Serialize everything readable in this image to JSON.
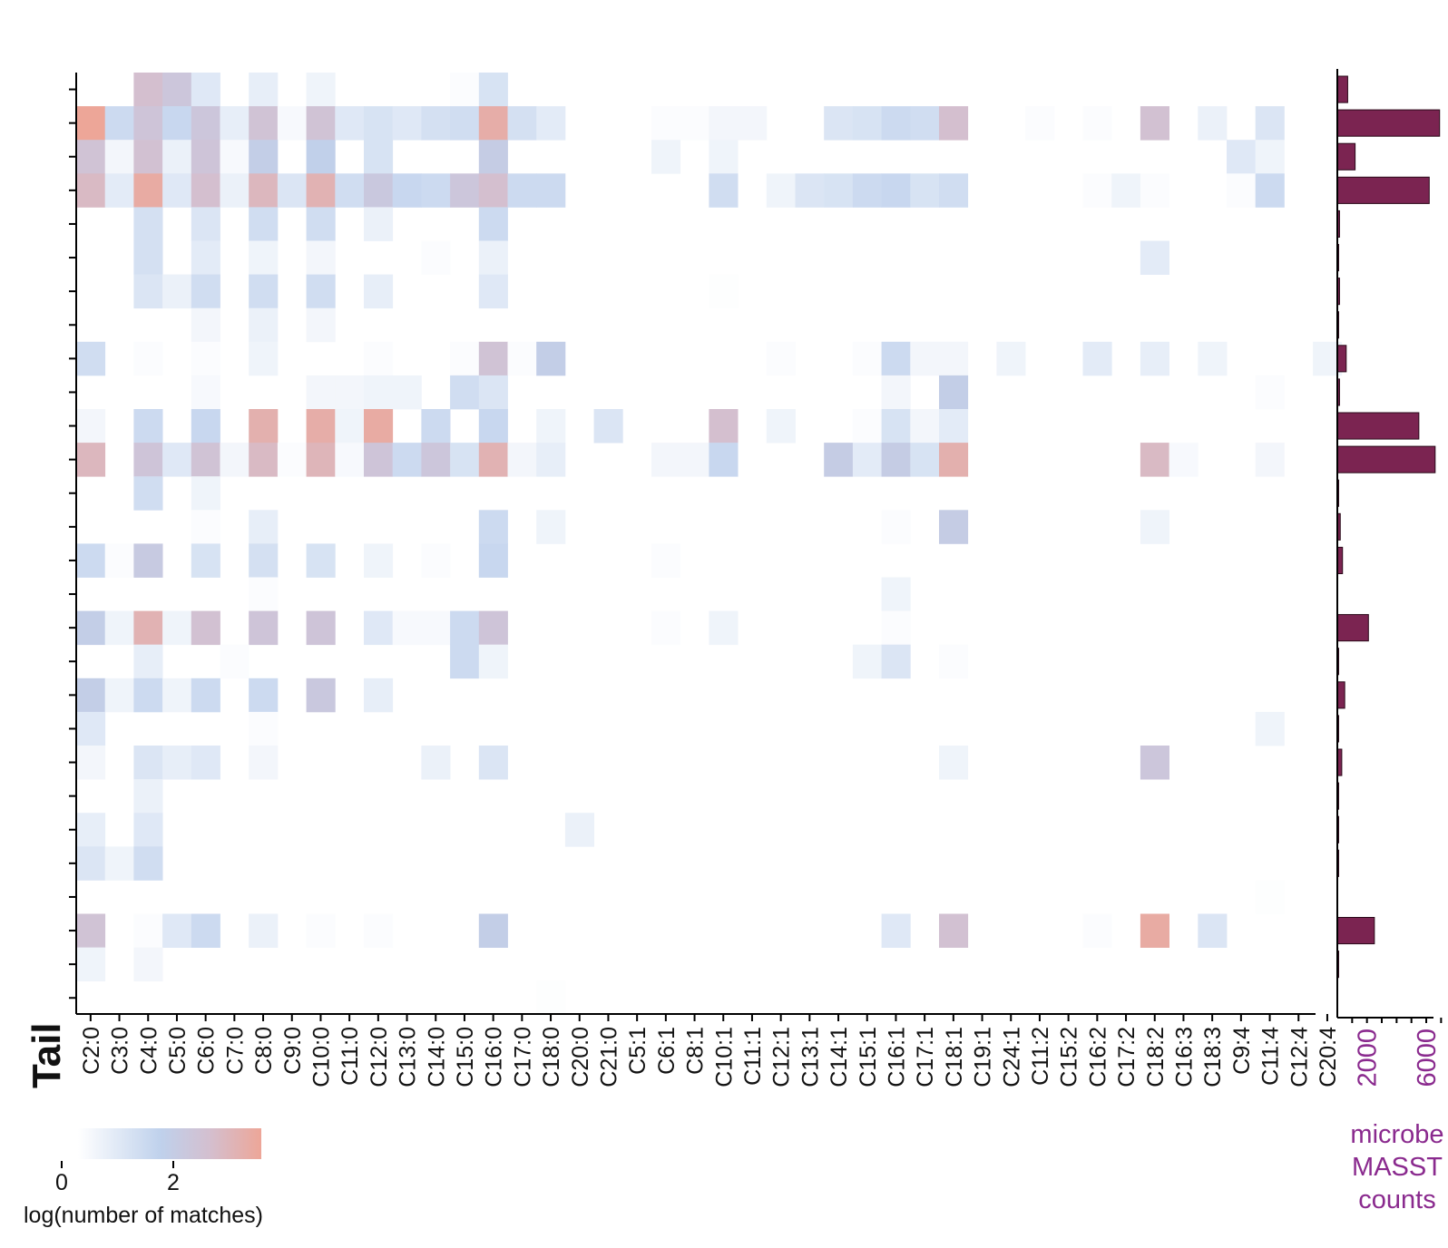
{
  "colors": {
    "low": "#ffffff",
    "mid": "#bfd1ec",
    "midhigh": "#d4bfcf",
    "high": "#eda698",
    "bar": "#7b2451",
    "bar_axis_text": "#8a2a8e",
    "axis": "#000000"
  },
  "chart_data": [
    {
      "type": "heatmap",
      "xlabel": "Tail",
      "ylabel": "",
      "categories": [
        "C2:0",
        "C3:0",
        "C4:0",
        "C5:0",
        "C6:0",
        "C7:0",
        "C8:0",
        "C9:0",
        "C10:0",
        "C11:0",
        "C12:0",
        "C13:0",
        "C14:0",
        "C15:0",
        "C16:0",
        "C17:0",
        "C18:0",
        "C20:0",
        "C21:0",
        "C5:1",
        "C6:1",
        "C8:1",
        "C10:1",
        "C11:1",
        "C12:1",
        "C13:1",
        "C14:1",
        "C15:1",
        "C16:1",
        "C17:1",
        "C18:1",
        "C19:1",
        "C24:1",
        "C11:2",
        "C15:2",
        "C16:2",
        "C17:2",
        "C18:2",
        "C16:3",
        "C18:3",
        "C9:4",
        "C11:4",
        "C12:4",
        "C20:4"
      ],
      "rows": 28,
      "matrix": [
        [
          0,
          0,
          2.6,
          2.2,
          0.8,
          0,
          0.6,
          0,
          0.4,
          0,
          0,
          0,
          0,
          0.1,
          1.0,
          0,
          0,
          0,
          0,
          0,
          0,
          0,
          0,
          0,
          0,
          0,
          0,
          0,
          0,
          0,
          0,
          0,
          0,
          0,
          0,
          0,
          0,
          0,
          0,
          0,
          0,
          0,
          0,
          0
        ],
        [
          3.6,
          1.3,
          2.3,
          1.4,
          2.2,
          0.6,
          2.4,
          0.2,
          2.4,
          0.8,
          1.0,
          0.8,
          1.1,
          1.2,
          3.3,
          1.1,
          0.7,
          0,
          0,
          0,
          0.1,
          0.1,
          0.3,
          0.3,
          0,
          0,
          0.9,
          1.0,
          1.3,
          1.2,
          2.6,
          0,
          0,
          0.1,
          0,
          0.1,
          0,
          2.5,
          0,
          0.5,
          0,
          0.9,
          0,
          0
        ],
        [
          2.4,
          0.3,
          2.5,
          0.5,
          2.3,
          0.2,
          1.8,
          0,
          1.7,
          0,
          1.0,
          0,
          0,
          0,
          1.9,
          0,
          0,
          0,
          0,
          0,
          0.4,
          0,
          0.4,
          0,
          0,
          0,
          0,
          0,
          0,
          0,
          0,
          0,
          0,
          0,
          0,
          0,
          0,
          0,
          0,
          0,
          0.8,
          0.4,
          0,
          0
        ],
        [
          2.8,
          0.7,
          3.4,
          0.8,
          2.6,
          0.5,
          2.9,
          0.9,
          3.1,
          1.2,
          2.1,
          1.4,
          1.3,
          2.2,
          2.6,
          1.3,
          1.3,
          0,
          0,
          0,
          0,
          0,
          1.2,
          0,
          0.4,
          0.9,
          1.0,
          1.3,
          1.4,
          1.0,
          1.2,
          0,
          0,
          0,
          0,
          0.1,
          0.4,
          0.1,
          0,
          0,
          0.1,
          1.3,
          0,
          0
        ],
        [
          0,
          0,
          1.1,
          0,
          0.9,
          0,
          1.2,
          0,
          1.2,
          0,
          0.5,
          0,
          0,
          0,
          1.3,
          0,
          0,
          0,
          0,
          0,
          0,
          0,
          0,
          0,
          0,
          0,
          0,
          0,
          0,
          0,
          0,
          0,
          0,
          0,
          0,
          0,
          0,
          0,
          0,
          0,
          0,
          0,
          0,
          0
        ],
        [
          0,
          0,
          1.1,
          0,
          0.7,
          0,
          0.4,
          0,
          0.3,
          0,
          0,
          0,
          0.1,
          0,
          0.5,
          0,
          0,
          0,
          0,
          0,
          0,
          0,
          0,
          0,
          0,
          0,
          0,
          0,
          0,
          0,
          0,
          0,
          0,
          0,
          0,
          0,
          0,
          0.7,
          0,
          0,
          0,
          0,
          0,
          0
        ],
        [
          0,
          0,
          0.9,
          0.5,
          1.2,
          0,
          1.2,
          0,
          1.2,
          0,
          0.6,
          0,
          0,
          0,
          0.8,
          0,
          0,
          0,
          0,
          0,
          0,
          0,
          0.05,
          0,
          0,
          0,
          0,
          0,
          0,
          0,
          0,
          0,
          0,
          0,
          0,
          0,
          0,
          0,
          0,
          0,
          0,
          0,
          0,
          0
        ],
        [
          0,
          0,
          0,
          0,
          0.3,
          0,
          0.5,
          0,
          0.3,
          0,
          0,
          0,
          0,
          0,
          0,
          0,
          0,
          0,
          0,
          0,
          0,
          0,
          0,
          0,
          0,
          0,
          0,
          0,
          0,
          0,
          0,
          0,
          0,
          0,
          0,
          0,
          0,
          0,
          0,
          0,
          0,
          0,
          0,
          0
        ],
        [
          1.2,
          0,
          0.1,
          0,
          0.1,
          0,
          0.4,
          0,
          0,
          0,
          0.1,
          0,
          0,
          0.1,
          2.4,
          0.1,
          1.8,
          0,
          0,
          0,
          0,
          0,
          0,
          0,
          0.1,
          0,
          0,
          0.1,
          1.3,
          0.3,
          0.3,
          0,
          0.4,
          0,
          0,
          0.7,
          0,
          0.6,
          0,
          0.4,
          0,
          0,
          0,
          0.4
        ],
        [
          0,
          0,
          0,
          0,
          0.2,
          0,
          0,
          0,
          0.3,
          0.3,
          0.4,
          0.4,
          0,
          1.2,
          0.9,
          0,
          0,
          0,
          0,
          0,
          0,
          0,
          0,
          0,
          0,
          0,
          0,
          0,
          0.3,
          0,
          1.8,
          0,
          0,
          0,
          0,
          0,
          0,
          0,
          0,
          0,
          0,
          0.1,
          0,
          0
        ],
        [
          0.3,
          0,
          1.3,
          0,
          1.4,
          0,
          3.2,
          0,
          3.3,
          0.4,
          3.4,
          0,
          1.3,
          0,
          1.4,
          0,
          0.4,
          0,
          0.9,
          0,
          0,
          0,
          2.6,
          0,
          0.4,
          0,
          0,
          0.1,
          1.0,
          0.3,
          0.7,
          0,
          0,
          0,
          0,
          0,
          0,
          0,
          0,
          0,
          0,
          0,
          0,
          0
        ],
        [
          2.9,
          0,
          2.3,
          0.8,
          2.4,
          0.3,
          2.8,
          0.1,
          3.0,
          0.2,
          2.3,
          1.3,
          2.2,
          1.0,
          3.1,
          0.3,
          0.6,
          0,
          0,
          0,
          0.3,
          0.3,
          1.4,
          0,
          0,
          0,
          1.9,
          0.7,
          1.9,
          1.0,
          3.2,
          0,
          0,
          0,
          0,
          0,
          0,
          2.8,
          0.2,
          0,
          0,
          0.3,
          0,
          0
        ],
        [
          0,
          0,
          1.2,
          0,
          0.4,
          0,
          0,
          0,
          0,
          0,
          0,
          0,
          0,
          0,
          0,
          0,
          0,
          0,
          0,
          0,
          0,
          0,
          0,
          0,
          0,
          0,
          0,
          0,
          0,
          0,
          0,
          0,
          0,
          0,
          0,
          0,
          0,
          0,
          0,
          0,
          0,
          0,
          0,
          0
        ],
        [
          0,
          0,
          0,
          0,
          0.1,
          0,
          0.6,
          0,
          0,
          0,
          0,
          0,
          0,
          0,
          1.3,
          0,
          0.4,
          0,
          0,
          0,
          0,
          0,
          0,
          0,
          0,
          0,
          0,
          0,
          0.1,
          0,
          1.9,
          0,
          0,
          0,
          0,
          0,
          0,
          0.4,
          0,
          0,
          0,
          0,
          0,
          0
        ],
        [
          1.3,
          0.1,
          2.0,
          0,
          1.0,
          0,
          1.1,
          0,
          1.0,
          0,
          0.4,
          0,
          0.1,
          0,
          1.4,
          0,
          0,
          0,
          0,
          0,
          0.1,
          0,
          0,
          0,
          0,
          0,
          0,
          0,
          0,
          0,
          0,
          0,
          0,
          0,
          0,
          0,
          0,
          0,
          0,
          0,
          0,
          0,
          0,
          0
        ],
        [
          0,
          0,
          0,
          0,
          0,
          0,
          0.1,
          0,
          0,
          0,
          0,
          0,
          0,
          0,
          0,
          0,
          0,
          0,
          0,
          0,
          0,
          0,
          0,
          0,
          0,
          0,
          0,
          0,
          0.4,
          0,
          0,
          0,
          0,
          0,
          0,
          0,
          0,
          0,
          0,
          0,
          0,
          0,
          0,
          0
        ],
        [
          1.8,
          0.4,
          3.1,
          0.4,
          2.5,
          0,
          2.3,
          0,
          2.3,
          0,
          0.8,
          0.2,
          0.2,
          1.3,
          2.3,
          0,
          0,
          0,
          0,
          0,
          0.1,
          0,
          0.4,
          0,
          0,
          0,
          0,
          0,
          0.1,
          0,
          0,
          0,
          0,
          0,
          0,
          0,
          0,
          0,
          0,
          0,
          0,
          0,
          0,
          0
        ],
        [
          0,
          0,
          0.6,
          0,
          0,
          0.1,
          0,
          0,
          0,
          0,
          0,
          0,
          0,
          1.3,
          0.4,
          0,
          0,
          0,
          0,
          0,
          0,
          0,
          0,
          0,
          0,
          0,
          0,
          0.4,
          0.9,
          0,
          0.1,
          0,
          0,
          0,
          0,
          0,
          0,
          0,
          0,
          0,
          0,
          0,
          0,
          0
        ],
        [
          1.8,
          0.4,
          1.3,
          0.4,
          1.3,
          0,
          1.3,
          0,
          2.1,
          0,
          0.6,
          0,
          0,
          0,
          0,
          0,
          0,
          0,
          0,
          0,
          0,
          0,
          0,
          0,
          0,
          0,
          0,
          0,
          0,
          0,
          0,
          0,
          0,
          0,
          0,
          0,
          0,
          0,
          0,
          0,
          0,
          0,
          0,
          0
        ],
        [
          0.8,
          0,
          0,
          0,
          0,
          0,
          0.1,
          0,
          0,
          0,
          0,
          0,
          0,
          0,
          0,
          0,
          0,
          0,
          0,
          0,
          0,
          0,
          0,
          0,
          0,
          0,
          0,
          0,
          0,
          0,
          0,
          0,
          0,
          0,
          0,
          0,
          0,
          0,
          0,
          0,
          0,
          0.4,
          0,
          0
        ],
        [
          0.3,
          0,
          0.9,
          0.6,
          0.8,
          0,
          0.3,
          0,
          0,
          0,
          0,
          0,
          0.5,
          0,
          0.9,
          0,
          0,
          0,
          0,
          0,
          0,
          0,
          0,
          0,
          0,
          0,
          0,
          0,
          0,
          0,
          0.4,
          0,
          0,
          0,
          0,
          0,
          0,
          2.2,
          0,
          0,
          0,
          0,
          0,
          0
        ],
        [
          0,
          0,
          0.5,
          0,
          0,
          0,
          0,
          0,
          0,
          0,
          0,
          0,
          0,
          0,
          0,
          0,
          0,
          0,
          0,
          0,
          0,
          0,
          0,
          0,
          0,
          0,
          0,
          0,
          0,
          0,
          0,
          0,
          0,
          0,
          0,
          0,
          0,
          0,
          0,
          0,
          0,
          0,
          0,
          0
        ],
        [
          0.6,
          0,
          0.8,
          0,
          0,
          0,
          0,
          0,
          0,
          0,
          0,
          0,
          0,
          0,
          0,
          0,
          0,
          0.5,
          0,
          0,
          0,
          0,
          0,
          0,
          0,
          0,
          0,
          0,
          0,
          0,
          0,
          0,
          0,
          0,
          0,
          0,
          0,
          0,
          0,
          0,
          0,
          0,
          0,
          0
        ],
        [
          0.9,
          0.4,
          1.2,
          0,
          0,
          0,
          0,
          0,
          0,
          0,
          0,
          0,
          0,
          0,
          0,
          0,
          0,
          0,
          0,
          0,
          0,
          0,
          0,
          0,
          0,
          0,
          0,
          0,
          0,
          0,
          0,
          0,
          0,
          0,
          0,
          0,
          0,
          0,
          0,
          0,
          0,
          0,
          0,
          0
        ],
        [
          0,
          0,
          0,
          0,
          0,
          0,
          0,
          0,
          0,
          0,
          0,
          0,
          0,
          0,
          0,
          0,
          0,
          0,
          0,
          0,
          0,
          0,
          0,
          0,
          0,
          0,
          0,
          0,
          0,
          0,
          0,
          0,
          0,
          0,
          0,
          0,
          0,
          0,
          0,
          0,
          0,
          0.05,
          0,
          0
        ],
        [
          2.4,
          0,
          0.1,
          0.8,
          1.3,
          0,
          0.5,
          0,
          0.1,
          0,
          0.1,
          0,
          0,
          0,
          1.8,
          0,
          0,
          0,
          0,
          0,
          0,
          0,
          0,
          0,
          0,
          0,
          0,
          0,
          0.8,
          0,
          2.5,
          0,
          0,
          0,
          0,
          0.1,
          0,
          3.4,
          0,
          0.9,
          0,
          0,
          0,
          0
        ],
        [
          0.4,
          0,
          0.3,
          0,
          0,
          0,
          0,
          0,
          0,
          0,
          0,
          0,
          0,
          0,
          0,
          0,
          0,
          0,
          0,
          0,
          0,
          0,
          0,
          0,
          0,
          0,
          0,
          0,
          0,
          0,
          0,
          0,
          0,
          0,
          0,
          0,
          0,
          0,
          0,
          0,
          0,
          0,
          0,
          0
        ],
        [
          0,
          0,
          0,
          0,
          0,
          0,
          0,
          0,
          0,
          0,
          0,
          0,
          0,
          0,
          0,
          0,
          0.05,
          0,
          0,
          0,
          0,
          0,
          0,
          0,
          0,
          0,
          0,
          0,
          0,
          0,
          0,
          0,
          0,
          0,
          0,
          0,
          0,
          0,
          0,
          0,
          0,
          0,
          0,
          0
        ]
      ],
      "colorbar": {
        "label": "log(number of matches)",
        "ticks": [
          0,
          2
        ],
        "range": [
          0,
          3.6
        ]
      }
    },
    {
      "type": "bar",
      "orientation": "horizontal",
      "xlabel": "microbe MASST counts",
      "xticks": [
        2000,
        6000
      ],
      "xlim": [
        0,
        7100
      ],
      "values": [
        700,
        6900,
        1200,
        6200,
        150,
        60,
        150,
        30,
        600,
        150,
        5500,
        6600,
        60,
        200,
        350,
        0,
        2100,
        80,
        500,
        20,
        300,
        10,
        60,
        80,
        0,
        2500,
        10,
        0
      ]
    }
  ]
}
